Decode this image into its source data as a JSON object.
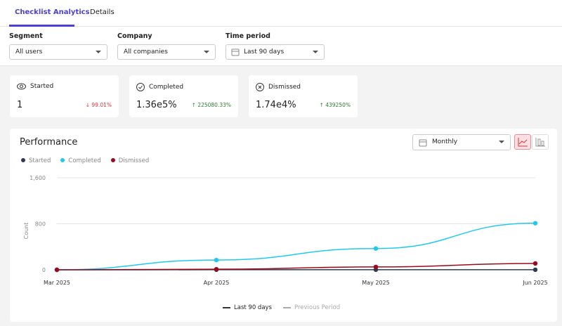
{
  "tabs": [
    {
      "label": "Checklist Analytics",
      "active": true
    },
    {
      "label": "Details",
      "active": false
    }
  ],
  "filters": {
    "segment": {
      "label": "Segment",
      "value": "All users"
    },
    "company": {
      "label": "Company",
      "value": "All companies"
    },
    "time": {
      "label": "Time period",
      "value": "Last 90 days"
    }
  },
  "cards": [
    {
      "title": "Started",
      "icon": "eye-icon",
      "value": "1",
      "delta": "99.01%",
      "direction": "down",
      "color": "#e5333a"
    },
    {
      "title": "Completed",
      "icon": "check-circle-icon",
      "value": "1.36e5%",
      "delta": "225080.33%",
      "direction": "up",
      "color": "#2e7d32"
    },
    {
      "title": "Dismissed",
      "icon": "x-circle-icon",
      "value": "1.74e4%",
      "delta": "439250%",
      "direction": "up",
      "color": "#2e7d32"
    }
  ],
  "performance": {
    "title": "Performance",
    "interval": "Monthly",
    "view": "line"
  },
  "bottom_legend": {
    "current": "Last 90 days",
    "previous": "Previous Period"
  },
  "chart_data": {
    "type": "line",
    "ylabel": "Count",
    "ylim": [
      0,
      1600
    ],
    "yticks": [
      "0",
      "800",
      "1,600"
    ],
    "categories": [
      "Mar 2025",
      "Apr 2025",
      "May 2025",
      "Jun 2025"
    ],
    "series": [
      {
        "name": "Started",
        "color": "#2b3a55",
        "values": [
          0,
          1,
          1,
          1
        ]
      },
      {
        "name": "Completed",
        "color": "#1fcaf0",
        "values": [
          0,
          170,
          370,
          810
        ]
      },
      {
        "name": "Dismissed",
        "color": "#9b0a1c",
        "values": [
          0,
          10,
          50,
          110
        ]
      }
    ],
    "grid": true,
    "legend": "top-left"
  }
}
